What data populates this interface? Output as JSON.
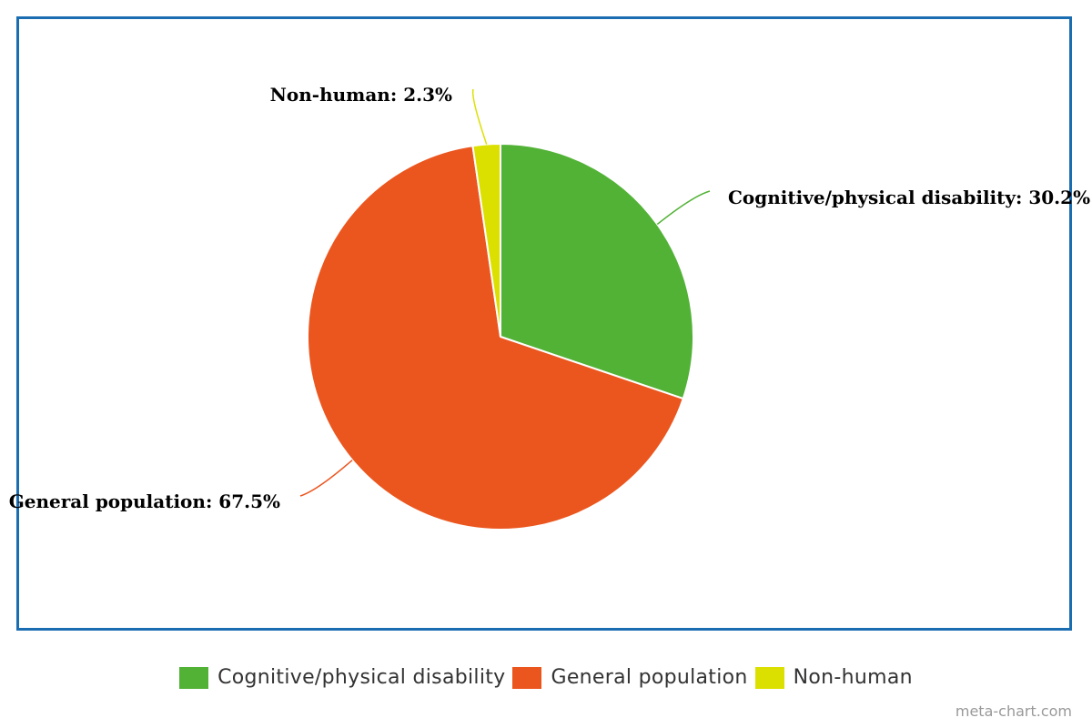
{
  "chart_data": {
    "type": "pie",
    "title": "",
    "slices": [
      {
        "label": "Cognitive/physical disability",
        "value": 30.2,
        "display": "Cognitive/physical disability: 30.2%",
        "color": "#52b236"
      },
      {
        "label": "General population",
        "value": 67.5,
        "display": "General population: 67.5%",
        "color": "#eb561f"
      },
      {
        "label": "Non-human",
        "value": 2.3,
        "display": "Non-human: 2.3%",
        "color": "#dce000"
      }
    ],
    "legend_placement": "bottom",
    "start_angle_deg": 0,
    "direction": "clockwise"
  },
  "watermark": "meta-chart.com",
  "colors": {
    "frame_border": "#1b6db1"
  }
}
